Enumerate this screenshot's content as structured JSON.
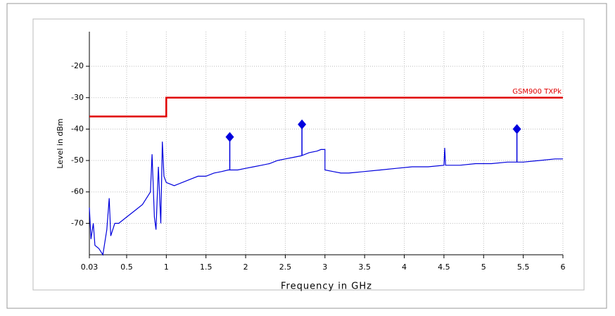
{
  "chart_data": {
    "type": "line",
    "x_label": "Frequency in GHz",
    "y_label": "Level in dBm",
    "xlim": [
      0.03,
      6
    ],
    "ylim": [
      -80,
      -9
    ],
    "xticks": [
      0.03,
      0.5,
      1,
      1.5,
      2,
      2.5,
      3,
      3.5,
      4,
      4.5,
      5,
      5.5,
      6
    ],
    "yticks": [
      -70,
      -60,
      -50,
      -40,
      -30,
      -20
    ],
    "grid": true,
    "series": [
      {
        "color": "#0000dd",
        "x": [
          0.03,
          0.05,
          0.08,
          0.1,
          0.15,
          0.2,
          0.25,
          0.28,
          0.3,
          0.35,
          0.4,
          0.5,
          0.6,
          0.7,
          0.75,
          0.8,
          0.82,
          0.85,
          0.87,
          0.9,
          0.93,
          0.95,
          0.97,
          1.0,
          1.1,
          1.2,
          1.3,
          1.4,
          1.5,
          1.6,
          1.7,
          1.78,
          1.9,
          2.0,
          2.1,
          2.2,
          2.3,
          2.4,
          2.5,
          2.6,
          2.7,
          2.8,
          2.9,
          2.95,
          3.0,
          3.0,
          3.1,
          3.2,
          3.3,
          3.5,
          3.7,
          3.9,
          4.1,
          4.3,
          4.5,
          4.51,
          4.52,
          4.7,
          4.9,
          5.1,
          5.3,
          5.5,
          5.7,
          5.9,
          6.0
        ],
        "values": [
          -65,
          -75,
          -70,
          -77,
          -78,
          -80,
          -72,
          -62,
          -74,
          -70,
          -70,
          -68,
          -66,
          -64,
          -62,
          -60,
          -48,
          -68,
          -72,
          -52,
          -70,
          -44,
          -55,
          -57,
          -58,
          -57,
          -56,
          -55,
          -55,
          -54,
          -53.5,
          -53,
          -53,
          -52.5,
          -52,
          -51.5,
          -51,
          -50,
          -49.5,
          -49,
          -48.5,
          -47.5,
          -47,
          -46.5,
          -46.5,
          -53,
          -53.5,
          -54,
          -54,
          -53.5,
          -53,
          -52.5,
          -52,
          -52,
          -51.5,
          -46,
          -51.5,
          -51.5,
          -51,
          -51,
          -50.5,
          -50.5,
          -50,
          -49.5,
          -49.5
        ]
      },
      {
        "name": "GSM900 TXPk",
        "color": "#e00000",
        "x": [
          0.03,
          1,
          1,
          6
        ],
        "values": [
          -36,
          -36,
          -30,
          -30
        ]
      }
    ],
    "markers": {
      "color": "#0000dd",
      "x": [
        1.8,
        2.71,
        5.42
      ],
      "values": [
        -42.5,
        -38.5,
        -40
      ]
    }
  }
}
